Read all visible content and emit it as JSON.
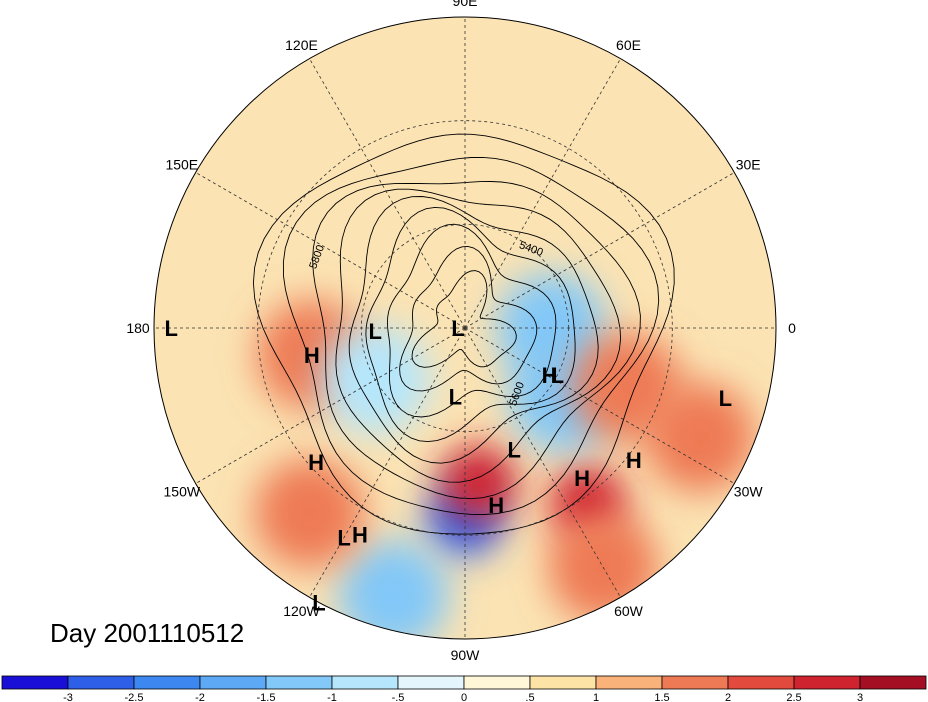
{
  "title": "Day 2001110512",
  "longitude_labels": [
    {
      "text": "90E",
      "angle": -90
    },
    {
      "text": "60E",
      "angle": -60
    },
    {
      "text": "30E",
      "angle": -30
    },
    {
      "text": "0",
      "angle": 0
    },
    {
      "text": "30W",
      "angle": 30
    },
    {
      "text": "60W",
      "angle": 60
    },
    {
      "text": "90W",
      "angle": 90
    },
    {
      "text": "120W",
      "angle": 120
    },
    {
      "text": "150W",
      "angle": 150
    },
    {
      "text": "180",
      "angle": 180
    },
    {
      "text": "150E",
      "angle": -150
    },
    {
      "text": "120E",
      "angle": -120
    }
  ],
  "pressure_systems": [
    {
      "type": "L",
      "lon": 120,
      "lat": 20
    },
    {
      "type": "H",
      "lon": 117,
      "lat": 23
    },
    {
      "type": "H",
      "lon": 52,
      "lat": 35
    },
    {
      "type": "L",
      "lon": 15,
      "lat": 12
    },
    {
      "type": "L",
      "lon": 27,
      "lat": 60
    },
    {
      "type": "H",
      "lon": 170,
      "lat": 45
    },
    {
      "type": "L",
      "lon": 180,
      "lat": 5
    },
    {
      "type": "L",
      "lon": 178,
      "lat": 64
    },
    {
      "type": "L",
      "lon": 180,
      "lat": 88
    },
    {
      "type": "H",
      "lon": 29,
      "lat": 62
    },
    {
      "type": "L",
      "lon": 98,
      "lat": 70
    },
    {
      "type": "L",
      "lon": 68,
      "lat": 52
    },
    {
      "type": "H",
      "lon": 138,
      "lat": 32
    },
    {
      "type": "H",
      "lon": 38,
      "lat": 28
    },
    {
      "type": "H",
      "lon": 80,
      "lat": 38
    },
    {
      "type": "L",
      "lon": 118,
      "lat": 0
    }
  ],
  "contour_labels": [
    "5800",
    "5400",
    "5600"
  ],
  "colorbar": {
    "ticks": [
      "-3",
      "-2.5",
      "-2",
      "-1.5",
      "-1",
      "-.5",
      "0",
      ".5",
      "1",
      "1.5",
      "2",
      "2.5",
      "3"
    ],
    "colors": [
      "#1a0fd6",
      "#2e5fe8",
      "#3d88f0",
      "#5ea9f5",
      "#82c8f8",
      "#b6e6fb",
      "#e4f6fc",
      "#fff7d8",
      "#fde4a6",
      "#f8b27a",
      "#ee7a55",
      "#e24a3d",
      "#cf2330",
      "#a50f24"
    ]
  },
  "anomaly_regions": [
    {
      "lon": 0,
      "lat": 65,
      "value": -1.5
    },
    {
      "lon": 90,
      "lat": 35,
      "value": -3
    },
    {
      "lon": 85,
      "lat": 45,
      "value": 2.5
    },
    {
      "lon": 55,
      "lat": 28,
      "value": 2.5
    },
    {
      "lon": 25,
      "lat": 15,
      "value": 1.5
    },
    {
      "lon": 105,
      "lat": 10,
      "value": -1.5
    },
    {
      "lon": 170,
      "lat": 45,
      "value": 1.5
    },
    {
      "lon": 130,
      "lat": 20,
      "value": 1.5
    },
    {
      "lon": 150,
      "lat": 60,
      "value": -1
    },
    {
      "lon": 35,
      "lat": 55,
      "value": -1.5
    },
    {
      "lon": 20,
      "lat": 40,
      "value": 1.5
    },
    {
      "lon": 60,
      "lat": 10,
      "value": 1.5
    }
  ]
}
